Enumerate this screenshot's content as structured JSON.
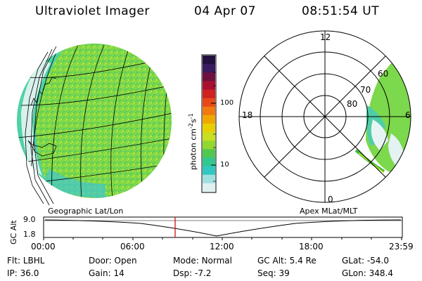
{
  "header": {
    "instrument": "Ultraviolet Imager",
    "date": "04 Apr 07",
    "time": "08:51:54 UT"
  },
  "colorbar": {
    "label_main": "photon cm",
    "label_sup1": "-2",
    "label_mid": "s",
    "label_sup2": "-1",
    "ticks": [
      "100",
      "10"
    ],
    "colors": [
      "#221040",
      "#3a1a60",
      "#6e1040",
      "#a81030",
      "#d02020",
      "#e84818",
      "#f07a10",
      "#f0a800",
      "#e8d000",
      "#c8e020",
      "#90d830",
      "#50c850",
      "#30c890",
      "#30c8c0",
      "#a0e0e0",
      "#e0f0f0"
    ]
  },
  "polar": {
    "ring_labels": [
      "80",
      "70",
      "60"
    ],
    "mlt_labels": {
      "top": "12",
      "left": "18",
      "right": "6",
      "bottom": "0"
    }
  },
  "panel_labels": {
    "left": "Geographic Lat/Lon",
    "right": "Apex MLat/MLT"
  },
  "altitude_plot": {
    "axis_label": "GC Alt",
    "y_ticks": [
      "9.0",
      "1.8"
    ],
    "x_ticks": [
      "00:00",
      "06:00",
      "12:00",
      "18:00",
      "23:59"
    ],
    "current_time_marker": "08:51:54"
  },
  "status": {
    "row1": [
      {
        "key": "Flt:",
        "value": "LBHL"
      },
      {
        "key": "Door:",
        "value": "Open"
      },
      {
        "key": "Mode:",
        "value": "Normal"
      },
      {
        "key": "GC Alt:",
        "value": "5.4 Re"
      },
      {
        "key": "GLat:",
        "value": "-54.0"
      }
    ],
    "row2": [
      {
        "key": "IP:",
        "value": "36.0"
      },
      {
        "key": "Gain:",
        "value": "14"
      },
      {
        "key": "Dsp:",
        "value": "-7.2"
      },
      {
        "key": "Seq:",
        "value": "39"
      },
      {
        "key": "GLon:",
        "value": "348.4"
      }
    ]
  },
  "colors": {
    "image_green": "#7ed84a",
    "image_cyan": "#40d0b0",
    "marker_red": "#cc0000"
  }
}
